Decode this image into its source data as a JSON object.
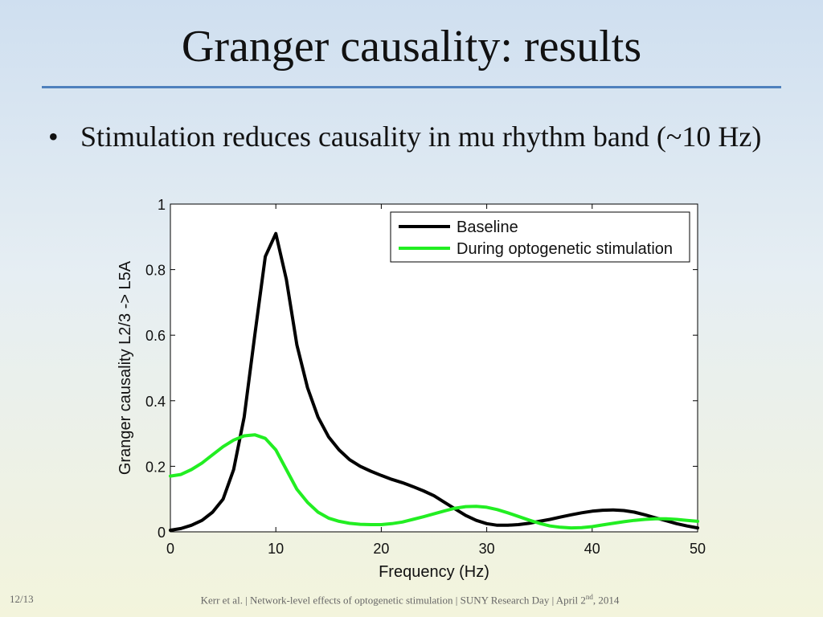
{
  "slide": {
    "title": "Granger causality: results",
    "bullet": "Stimulation reduces causality in mu rhythm band (~10 Hz)",
    "bullet_symbol": "•",
    "colors": {
      "rule": "#4f81bd",
      "baseline": "#000000",
      "stimulation": "#22ee22"
    }
  },
  "footer": {
    "page": "12/13",
    "citation_part1": "Kerr et al.  |  Network-level effects of optogenetic stimulation  |  SUNY Research Day  |  April 2",
    "citation_sup": "nd",
    "citation_part2": ", 2014"
  },
  "chart_data": {
    "type": "line",
    "xlabel": "Frequency (Hz)",
    "ylabel": "Granger causality L2/3 -> L5A",
    "xlim": [
      0,
      50
    ],
    "ylim": [
      0,
      1
    ],
    "xticks": [
      0,
      10,
      20,
      30,
      40,
      50
    ],
    "yticks": [
      0,
      0.2,
      0.4,
      0.6,
      0.8,
      1
    ],
    "ytick_labels": [
      "0",
      "0.2",
      "0.4",
      "0.6",
      "0.8",
      "1"
    ],
    "grid": false,
    "legend_position": "top-right",
    "series": [
      {
        "name": "Baseline",
        "color": "#000000",
        "x": [
          0,
          1,
          2,
          3,
          4,
          5,
          6,
          7,
          8,
          9,
          10,
          11,
          12,
          13,
          14,
          15,
          16,
          17,
          18,
          19,
          20,
          21,
          22,
          23,
          24,
          25,
          26,
          27,
          28,
          29,
          30,
          31,
          32,
          33,
          34,
          35,
          36,
          37,
          38,
          39,
          40,
          41,
          42,
          43,
          44,
          45,
          46,
          47,
          48,
          49,
          50
        ],
        "y": [
          0.005,
          0.01,
          0.02,
          0.035,
          0.06,
          0.1,
          0.19,
          0.35,
          0.6,
          0.84,
          0.91,
          0.77,
          0.57,
          0.44,
          0.35,
          0.29,
          0.25,
          0.22,
          0.2,
          0.185,
          0.172,
          0.16,
          0.15,
          0.138,
          0.125,
          0.11,
          0.09,
          0.07,
          0.05,
          0.035,
          0.025,
          0.02,
          0.02,
          0.022,
          0.026,
          0.032,
          0.038,
          0.045,
          0.052,
          0.058,
          0.063,
          0.066,
          0.067,
          0.065,
          0.06,
          0.052,
          0.043,
          0.034,
          0.025,
          0.018,
          0.012
        ]
      },
      {
        "name": "During optogenetic stimulation",
        "color": "#22ee22",
        "x": [
          0,
          1,
          2,
          3,
          4,
          5,
          6,
          7,
          8,
          9,
          10,
          11,
          12,
          13,
          14,
          15,
          16,
          17,
          18,
          19,
          20,
          21,
          22,
          23,
          24,
          25,
          26,
          27,
          28,
          29,
          30,
          31,
          32,
          33,
          34,
          35,
          36,
          37,
          38,
          39,
          40,
          41,
          42,
          43,
          44,
          45,
          46,
          47,
          48,
          49,
          50
        ],
        "y": [
          0.17,
          0.175,
          0.19,
          0.21,
          0.235,
          0.26,
          0.28,
          0.293,
          0.296,
          0.285,
          0.25,
          0.19,
          0.13,
          0.09,
          0.06,
          0.042,
          0.032,
          0.026,
          0.023,
          0.022,
          0.022,
          0.025,
          0.03,
          0.038,
          0.046,
          0.055,
          0.064,
          0.072,
          0.077,
          0.078,
          0.075,
          0.068,
          0.058,
          0.047,
          0.036,
          0.026,
          0.018,
          0.014,
          0.012,
          0.013,
          0.016,
          0.021,
          0.026,
          0.031,
          0.035,
          0.038,
          0.04,
          0.04,
          0.038,
          0.035,
          0.032
        ]
      }
    ]
  }
}
